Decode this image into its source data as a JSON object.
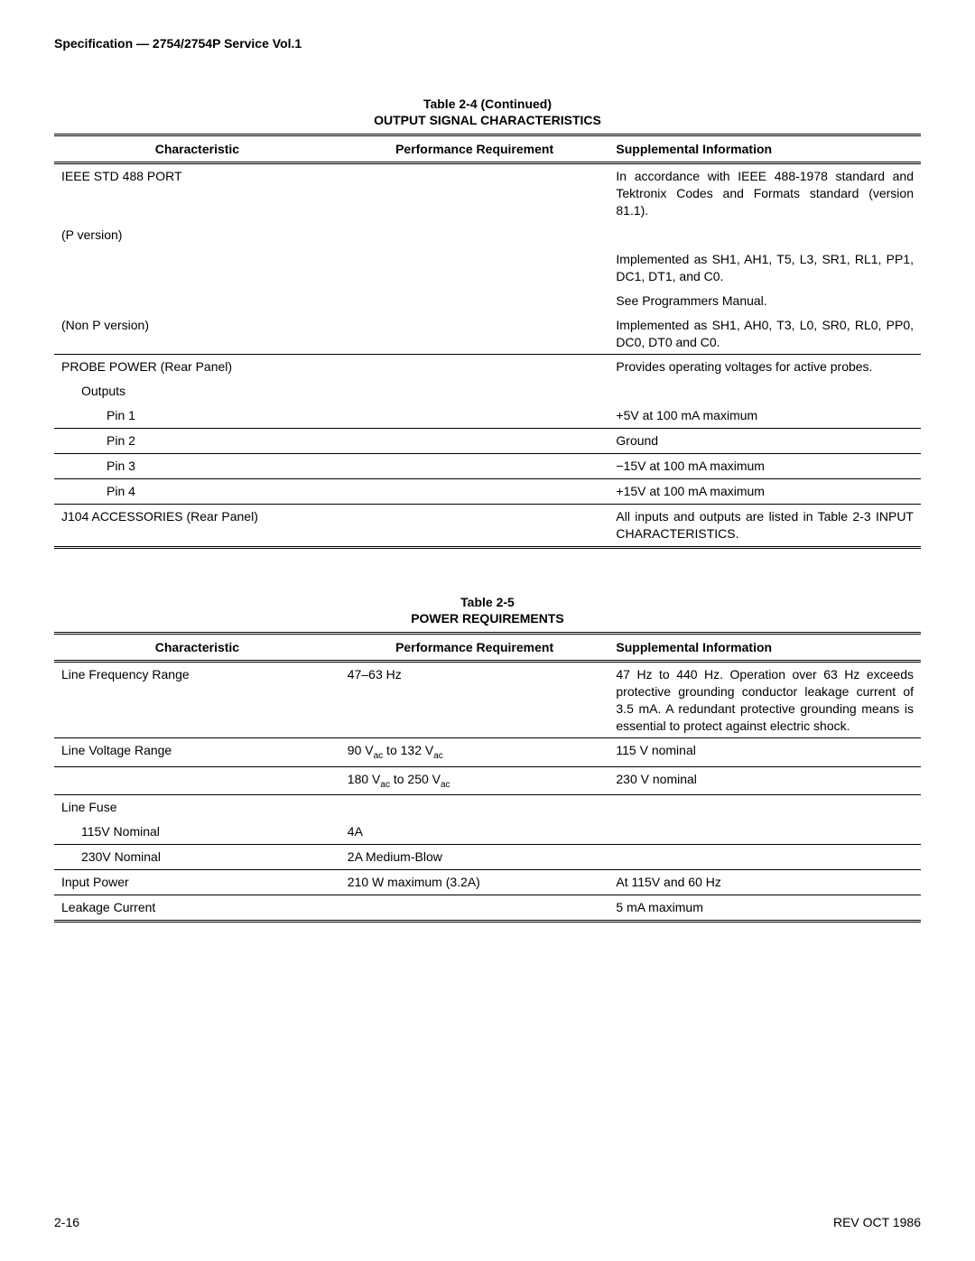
{
  "header": "Specification — 2754/2754P Service Vol.1",
  "table1": {
    "caption_line1": "Table 2-4 (Continued)",
    "caption_line2": "OUTPUT SIGNAL CHARACTERISTICS",
    "headers": [
      "Characteristic",
      "Performance Requirement",
      "Supplemental Information"
    ],
    "rows": [
      {
        "c1": "IEEE STD 488 PORT",
        "c2": "",
        "c3": "In accordance with IEEE 488-1978 standard and Tektronix Codes and Formats standard (version 81.1).",
        "indent": 0,
        "sep": false
      },
      {
        "c1": "(P version)",
        "c2": "",
        "c3": "",
        "indent": 0,
        "sep": false
      },
      {
        "c1": "",
        "c2": "",
        "c3": "Implemented as SH1, AH1, T5, L3, SR1, RL1, PP1, DC1, DT1, and C0.",
        "indent": 0,
        "sep": false
      },
      {
        "c1": "",
        "c2": "",
        "c3": "See Programmers Manual.",
        "indent": 0,
        "sep": false
      },
      {
        "c1": "(Non P version)",
        "c2": "",
        "c3": "Implemented as SH1, AH0, T3, L0, SR0, RL0, PP0, DC0, DT0 and C0.",
        "indent": 0,
        "sep": true
      },
      {
        "c1": "PROBE POWER (Rear Panel)",
        "c2": "",
        "c3": "Provides operating voltages for active probes.",
        "indent": 0,
        "sep": false
      },
      {
        "c1": "Outputs",
        "c2": "",
        "c3": "",
        "indent": 1,
        "sep": false
      },
      {
        "c1": "Pin 1",
        "c2": "",
        "c3": "+5V at 100 mA maximum",
        "indent": 2,
        "sep": true
      },
      {
        "c1": "Pin 2",
        "c2": "",
        "c3": "Ground",
        "indent": 2,
        "sep": true
      },
      {
        "c1": "Pin 3",
        "c2": "",
        "c3": "−15V at 100 mA maximum",
        "indent": 2,
        "sep": true
      },
      {
        "c1": "Pin 4",
        "c2": "",
        "c3": "+15V at 100 mA maximum",
        "indent": 2,
        "sep": true
      },
      {
        "c1": "J104 ACCESSORIES (Rear Panel)",
        "c2": "",
        "c3": "All inputs and outputs are listed in Table 2-3 INPUT CHARACTERISTICS.",
        "indent": 0,
        "sep": false,
        "last": true
      }
    ]
  },
  "table2": {
    "caption_line1": "Table 2-5",
    "caption_line2": "POWER REQUIREMENTS",
    "headers": [
      "Characteristic",
      "Performance Requirement",
      "Supplemental Information"
    ],
    "rows": [
      {
        "c1": "Line Frequency Range",
        "c2": "47–63 Hz",
        "c3": "47 Hz to 440 Hz. Operation over 63 Hz exceeds protective grounding conductor leakage current of 3.5 mA. A redundant protective grounding means is essential to protect against electric shock.",
        "indent": 0,
        "sep": true
      },
      {
        "c1": "Line Voltage Range",
        "c2": "90 V_ac to 132 V_ac",
        "c3": "115 V nominal",
        "indent": 0,
        "sep": true
      },
      {
        "c1": "",
        "c2": "180 V_ac to 250 V_ac",
        "c3": "230 V nominal",
        "indent": 0,
        "sep": true
      },
      {
        "c1": "Line Fuse",
        "c2": "",
        "c3": "",
        "indent": 0,
        "sep": false
      },
      {
        "c1": "115V Nominal",
        "c2": "4A",
        "c3": "",
        "indent": 1,
        "sep": true
      },
      {
        "c1": "230V Nominal",
        "c2": "2A Medium-Blow",
        "c3": "",
        "indent": 1,
        "sep": true
      },
      {
        "c1": "Input Power",
        "c2": "210 W maximum (3.2A)",
        "c3": "At 115V and 60 Hz",
        "indent": 0,
        "sep": true
      },
      {
        "c1": "Leakage Current",
        "c2": "",
        "c3": "5 mA maximum",
        "indent": 0,
        "sep": false,
        "last": true
      }
    ]
  },
  "footer": {
    "left": "2-16",
    "right": "REV OCT 1986"
  }
}
